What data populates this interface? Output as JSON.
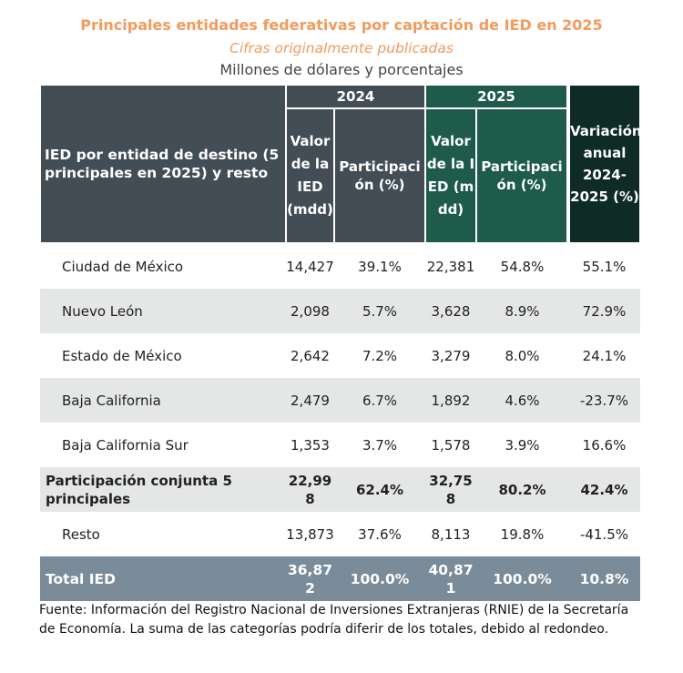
{
  "title": "Principales entidades federativas por captación de IED en 2025",
  "subtitle": "Cifras originalmente publicadas",
  "units": "Millones de dólares y porcentajes",
  "header": {
    "row_label": "IED por entidad de destino (5 principales en 2025) y resto",
    "year_2024": "2024",
    "year_2025": "2025",
    "valor": "Valor de la IED (mdd)",
    "participacion": "Participación (%)",
    "variacion": "Variación anual 2024-2025 (%)"
  },
  "rows": [
    {
      "entidad": "Ciudad de México",
      "v2024": "14,427",
      "p2024": "39.1%",
      "v2025": "22,381",
      "p2025": "54.8%",
      "var": "55.1%"
    },
    {
      "entidad": "Nuevo León",
      "v2024": "2,098",
      "p2024": "5.7%",
      "v2025": "3,628",
      "p2025": "8.9%",
      "var": "72.9%"
    },
    {
      "entidad": "Estado de México",
      "v2024": "2,642",
      "p2024": "7.2%",
      "v2025": "3,279",
      "p2025": "8.0%",
      "var": "24.1%"
    },
    {
      "entidad": "Baja California",
      "v2024": "2,479",
      "p2024": "6.7%",
      "v2025": "1,892",
      "p2025": "4.6%",
      "var": "-23.7%"
    },
    {
      "entidad": "Baja California Sur",
      "v2024": "1,353",
      "p2024": "3.7%",
      "v2025": "1,578",
      "p2025": "3.9%",
      "var": "16.6%"
    },
    {
      "entidad": "Participación conjunta 5 principales",
      "v2024": "22,998",
      "p2024": "62.4%",
      "v2025": "32,758",
      "p2025": "80.2%",
      "var": "42.4%"
    },
    {
      "entidad": "Resto",
      "v2024": "13,873",
      "p2024": "37.6%",
      "v2025": "8,113",
      "p2025": "19.8%",
      "var": "-41.5%"
    },
    {
      "entidad": "Total IED",
      "v2024": "36,872",
      "p2024": "100.0%",
      "v2025": "40,871",
      "p2025": "100.0%",
      "var": "10.8%"
    }
  ],
  "footnote": "Fuente: Información del Registro Nacional de Inversiones Extranjeras (RNIE) de la Secretaría de Economía. La suma de las categorías podría diferir de los totales, debido al redondeo.",
  "colors": {
    "title": "#f29b5c",
    "header_2024": "#434d56",
    "header_2025": "#1e5b4b",
    "header_variacion": "#0e2b25",
    "total_row": "#7a8b99",
    "stripe": "#e5e6e6"
  }
}
